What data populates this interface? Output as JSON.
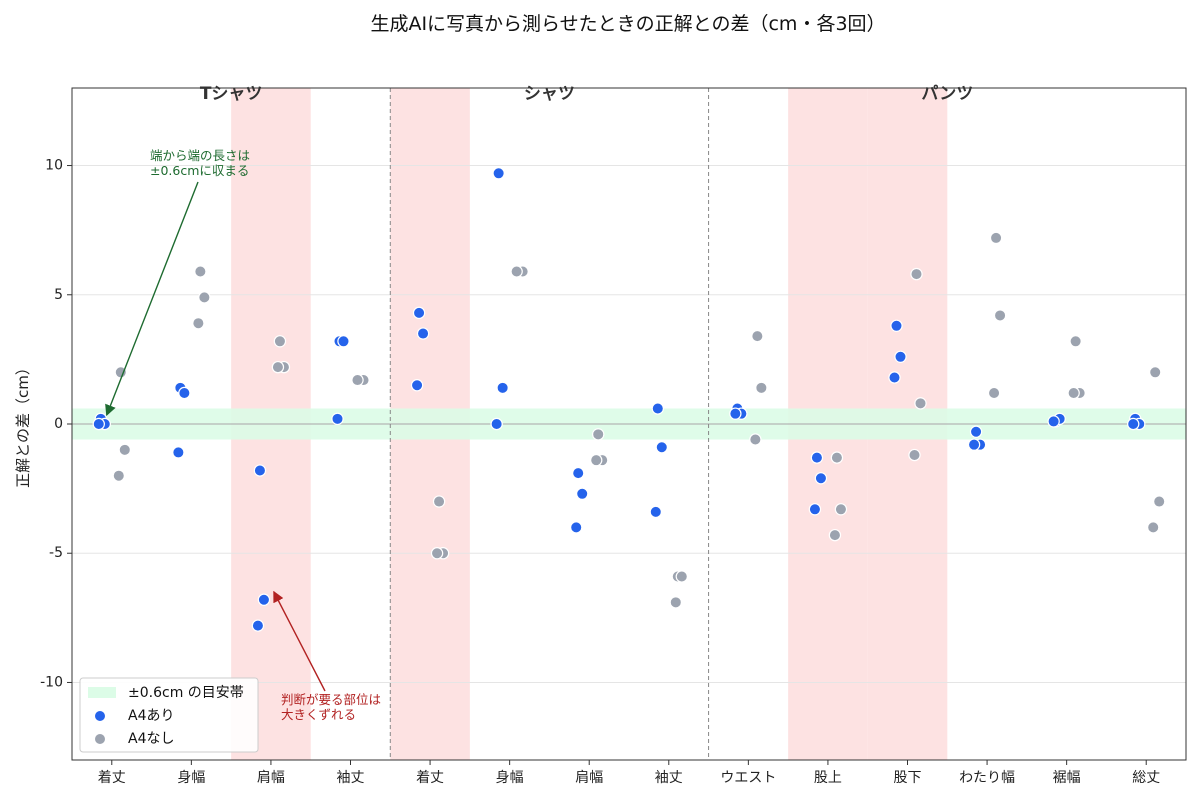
{
  "chart_data": {
    "type": "scatter",
    "title": "生成AIに写真から測らせたときの正解との差（cm・各3回）",
    "ylabel": "正解との差（cm）",
    "xlabel": "",
    "ylim": [
      -13,
      13
    ],
    "yticks": [
      10,
      5,
      0,
      -5,
      -10
    ],
    "ytick_labels": [
      "10",
      "5",
      "0",
      "-5",
      "-10"
    ],
    "categories": [
      "着丈",
      "身幅",
      "肩幅",
      "袖丈",
      "着丈",
      "身幅",
      "肩幅",
      "袖丈",
      "ウエスト",
      "股上",
      "股下",
      "わたり幅",
      "裾幅",
      "総丈"
    ],
    "groups": [
      {
        "label": "Tシャツ",
        "start": 0,
        "end": 3
      },
      {
        "label": "シャツ",
        "start": 4,
        "end": 7
      },
      {
        "label": "パンツ",
        "start": 8,
        "end": 13
      }
    ],
    "highlight_categories": [
      2,
      4,
      9,
      10
    ],
    "band": {
      "label": "±0.6cm の目安帯",
      "ymin": -0.6,
      "ymax": 0.6
    },
    "grid": true,
    "legend": "bottom-left",
    "series": [
      {
        "name": "A4あり",
        "points": [
          {
            "x": 0,
            "y": 0.2
          },
          {
            "x": 0,
            "y": 0.0
          },
          {
            "x": 0,
            "y": 0.0
          },
          {
            "x": 1,
            "y": 1.4
          },
          {
            "x": 1,
            "y": 1.2
          },
          {
            "x": 1,
            "y": -1.1
          },
          {
            "x": 2,
            "y": -1.8
          },
          {
            "x": 2,
            "y": -6.8
          },
          {
            "x": 2,
            "y": -7.8
          },
          {
            "x": 3,
            "y": 3.2
          },
          {
            "x": 3,
            "y": 3.2
          },
          {
            "x": 3,
            "y": 0.2
          },
          {
            "x": 4,
            "y": 4.3
          },
          {
            "x": 4,
            "y": 3.5
          },
          {
            "x": 4,
            "y": 1.5
          },
          {
            "x": 5,
            "y": 9.7
          },
          {
            "x": 5,
            "y": 1.4
          },
          {
            "x": 5,
            "y": 0.0
          },
          {
            "x": 6,
            "y": -1.9
          },
          {
            "x": 6,
            "y": -2.7
          },
          {
            "x": 6,
            "y": -4.0
          },
          {
            "x": 7,
            "y": 0.6
          },
          {
            "x": 7,
            "y": -0.9
          },
          {
            "x": 7,
            "y": -3.4
          },
          {
            "x": 8,
            "y": 0.6
          },
          {
            "x": 8,
            "y": 0.4
          },
          {
            "x": 8,
            "y": 0.4
          },
          {
            "x": 9,
            "y": -1.3
          },
          {
            "x": 9,
            "y": -2.1
          },
          {
            "x": 9,
            "y": -3.3
          },
          {
            "x": 10,
            "y": 3.8
          },
          {
            "x": 10,
            "y": 2.6
          },
          {
            "x": 10,
            "y": 1.8
          },
          {
            "x": 11,
            "y": -0.3
          },
          {
            "x": 11,
            "y": -0.8
          },
          {
            "x": 11,
            "y": -0.8
          },
          {
            "x": 12,
            "y": 0.1
          },
          {
            "x": 12,
            "y": 0.2
          },
          {
            "x": 12,
            "y": 0.1
          },
          {
            "x": 13,
            "y": 0.2
          },
          {
            "x": 13,
            "y": 0.0
          },
          {
            "x": 13,
            "y": 0.0
          }
        ]
      },
      {
        "name": "A4なし",
        "points": [
          {
            "x": 0,
            "y": 2.0
          },
          {
            "x": 0,
            "y": -1.0
          },
          {
            "x": 0,
            "y": -2.0
          },
          {
            "x": 1,
            "y": 5.9
          },
          {
            "x": 1,
            "y": 4.9
          },
          {
            "x": 1,
            "y": 3.9
          },
          {
            "x": 2,
            "y": 3.2
          },
          {
            "x": 2,
            "y": 2.2
          },
          {
            "x": 2,
            "y": 2.2
          },
          {
            "x": 3,
            "y": 1.7
          },
          {
            "x": 3,
            "y": 1.7
          },
          {
            "x": 3,
            "y": 1.7
          },
          {
            "x": 4,
            "y": -3.0
          },
          {
            "x": 4,
            "y": -5.0
          },
          {
            "x": 4,
            "y": -5.0
          },
          {
            "x": 5,
            "y": 5.9
          },
          {
            "x": 5,
            "y": 5.9
          },
          {
            "x": 5,
            "y": 5.9
          },
          {
            "x": 6,
            "y": -0.4
          },
          {
            "x": 6,
            "y": -1.4
          },
          {
            "x": 6,
            "y": -1.4
          },
          {
            "x": 7,
            "y": -5.9
          },
          {
            "x": 7,
            "y": -5.9
          },
          {
            "x": 7,
            "y": -6.9
          },
          {
            "x": 8,
            "y": 3.4
          },
          {
            "x": 8,
            "y": 1.4
          },
          {
            "x": 8,
            "y": -0.6
          },
          {
            "x": 9,
            "y": -1.3
          },
          {
            "x": 9,
            "y": -3.3
          },
          {
            "x": 9,
            "y": -4.3
          },
          {
            "x": 10,
            "y": 5.8
          },
          {
            "x": 10,
            "y": 0.8
          },
          {
            "x": 10,
            "y": -1.2
          },
          {
            "x": 11,
            "y": 7.2
          },
          {
            "x": 11,
            "y": 4.2
          },
          {
            "x": 11,
            "y": 1.2
          },
          {
            "x": 12,
            "y": 3.2
          },
          {
            "x": 12,
            "y": 1.2
          },
          {
            "x": 12,
            "y": 1.2
          },
          {
            "x": 13,
            "y": 2.0
          },
          {
            "x": 13,
            "y": -3.0
          },
          {
            "x": 13,
            "y": -4.0
          }
        ]
      }
    ],
    "annotations": [
      {
        "lines": [
          "端から端の長さは",
          "±0.6cmに収まる"
        ],
        "color": "#1e6b30",
        "target": {
          "x": 0,
          "y": 0.2
        }
      },
      {
        "lines": [
          "判断が要る部位は",
          "大きくずれる"
        ],
        "color": "#b22222",
        "target": {
          "x": 2,
          "y": -6.5
        }
      }
    ],
    "colors": {
      "a4_on": "#2563eb",
      "a4_off": "#9ca3af",
      "band": "#dcfce7",
      "highlight": "#fde2e2",
      "separator": "#888888"
    }
  }
}
